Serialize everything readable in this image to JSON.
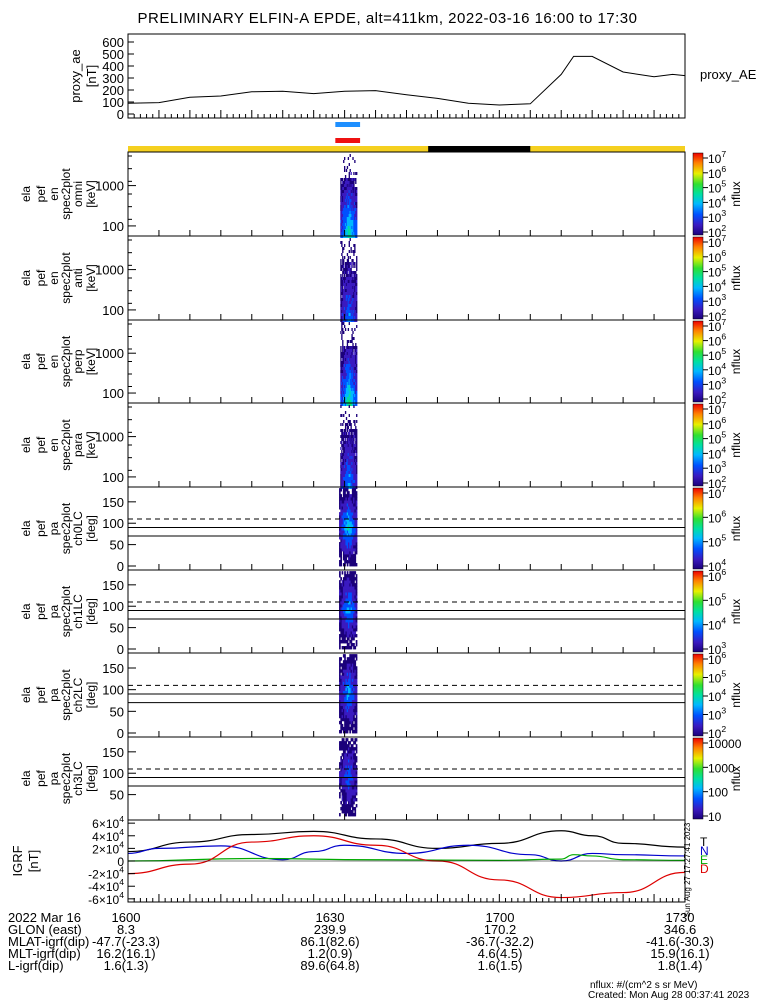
{
  "title": "PRELIMINARY ELFIN-A EPDE, alt=411km, 2022-03-16 16:00 to 17:30",
  "chart_data": [
    {
      "type": "line",
      "panel": "proxy_ae",
      "ylabel": [
        "proxy_ae",
        "[nT]"
      ],
      "legend": "proxy_AE",
      "ylim": [
        0,
        650
      ],
      "yticks": [
        "0",
        "100",
        "200",
        "300",
        "400",
        "500",
        "600"
      ],
      "x_minutes": [
        0,
        5,
        10,
        15,
        20,
        25,
        30,
        35,
        40,
        45,
        50,
        55,
        60,
        65,
        70,
        72,
        75,
        80,
        85,
        88,
        90
      ],
      "values": [
        90,
        95,
        140,
        150,
        185,
        190,
        170,
        190,
        195,
        160,
        130,
        90,
        75,
        85,
        330,
        480,
        480,
        350,
        310,
        330,
        320
      ]
    },
    {
      "type": "heatmap",
      "panel": "ela pef en spec2plot omni",
      "ylabel": [
        "ela",
        "pef",
        "en",
        "spec2plot",
        "omni",
        "[keV]"
      ],
      "yticks": [
        "100",
        "1000"
      ],
      "colorbar_ticks": [
        "10^2",
        "10^3",
        "10^4",
        "10^5",
        "10^6",
        "10^7"
      ],
      "colorbar_label": "nflux",
      "active_minutes": [
        34.5,
        36.5
      ]
    },
    {
      "type": "heatmap",
      "panel": "ela pef en spec2plot anti",
      "ylabel": [
        "ela",
        "pef",
        "en",
        "spec2plot",
        "anti",
        "[keV]"
      ],
      "yticks": [
        "100",
        "1000"
      ],
      "colorbar_ticks": [
        "10^2",
        "10^3",
        "10^4",
        "10^5",
        "10^6",
        "10^7"
      ],
      "colorbar_label": "nflux"
    },
    {
      "type": "heatmap",
      "panel": "ela pef en spec2plot perp",
      "ylabel": [
        "ela",
        "pef",
        "en",
        "spec2plot",
        "perp",
        "[keV]"
      ],
      "yticks": [
        "100",
        "1000"
      ],
      "colorbar_ticks": [
        "10^2",
        "10^3",
        "10^4",
        "10^5",
        "10^6",
        "10^7"
      ],
      "colorbar_label": "nflux"
    },
    {
      "type": "heatmap",
      "panel": "ela pef en spec2plot para",
      "ylabel": [
        "ela",
        "pef",
        "en",
        "spec2plot",
        "para",
        "[keV]"
      ],
      "yticks": [
        "100",
        "1000"
      ],
      "colorbar_ticks": [
        "10^2",
        "10^3",
        "10^4",
        "10^5",
        "10^6",
        "10^7"
      ],
      "colorbar_label": "nflux"
    },
    {
      "type": "heatmap",
      "panel": "ela pef pa spec2plot ch0LC",
      "ylabel": [
        "ela",
        "pef",
        "pa",
        "spec2plot",
        "ch0LC",
        "[deg]"
      ],
      "yticks": [
        "0",
        "50",
        "100",
        "150"
      ],
      "colorbar_ticks": [
        "10^4",
        "10^5",
        "10^6",
        "10^7"
      ],
      "colorbar_label": "nflux"
    },
    {
      "type": "heatmap",
      "panel": "ela pef pa spec2plot ch1LC",
      "ylabel": [
        "ela",
        "pef",
        "pa",
        "spec2plot",
        "ch1LC",
        "[deg]"
      ],
      "yticks": [
        "0",
        "50",
        "100",
        "150"
      ],
      "colorbar_ticks": [
        "10^3",
        "10^4",
        "10^5",
        "10^6"
      ],
      "colorbar_label": "nflux"
    },
    {
      "type": "heatmap",
      "panel": "ela pef pa spec2plot ch2LC",
      "ylabel": [
        "ela",
        "pef",
        "pa",
        "spec2plot",
        "ch2LC",
        "[deg]"
      ],
      "yticks": [
        "0",
        "50",
        "100",
        "150"
      ],
      "colorbar_ticks": [
        "10^2",
        "10^3",
        "10^4",
        "10^5",
        "10^6"
      ],
      "colorbar_label": "nflux"
    },
    {
      "type": "heatmap",
      "panel": "ela pef pa spec2plot ch3LC",
      "ylabel": [
        "ela",
        "pef",
        "pa",
        "spec2plot",
        "ch3LC",
        "[deg]"
      ],
      "yticks": [
        "50",
        "100",
        "150"
      ],
      "colorbar_ticks": [
        "10",
        "100",
        "1000",
        "10000"
      ],
      "colorbar_label": "nflux"
    },
    {
      "type": "line",
      "panel": "IGRF",
      "ylabel": [
        "IGRF",
        "[nT]"
      ],
      "ylim": [
        -65000,
        65000
      ],
      "yticks": [
        "-6×10^4",
        "-4×10^4",
        "-2×10^4",
        "0",
        "2×10^4",
        "4×10^4",
        "6×10^4"
      ],
      "legend": [
        "T",
        "N",
        "E",
        "D"
      ],
      "series": [
        {
          "name": "T",
          "color": "#000000",
          "x_minutes": [
            0,
            10,
            20,
            30,
            40,
            50,
            60,
            70,
            75,
            80,
            90
          ],
          "values": [
            15000,
            30000,
            42000,
            47000,
            35000,
            20000,
            28000,
            48000,
            40000,
            28000,
            22000
          ]
        },
        {
          "name": "N",
          "color": "#0000cc",
          "x_minutes": [
            0,
            5,
            15,
            25,
            30,
            35,
            45,
            55,
            65,
            70,
            75,
            80,
            90
          ],
          "values": [
            12000,
            20000,
            24000,
            2000,
            15000,
            25000,
            12000,
            25000,
            10000,
            0,
            12000,
            10000,
            8000
          ]
        },
        {
          "name": "E",
          "color": "#00aa00",
          "x_minutes": [
            0,
            20,
            40,
            60,
            70,
            72,
            75,
            80,
            90
          ],
          "values": [
            0,
            4000,
            2000,
            1000,
            3000,
            10000,
            8000,
            2000,
            1000
          ]
        },
        {
          "name": "D",
          "color": "#dd0000",
          "x_minutes": [
            0,
            10,
            20,
            30,
            40,
            50,
            60,
            70,
            80,
            90
          ],
          "values": [
            -20000,
            -5000,
            30000,
            40000,
            25000,
            0,
            -30000,
            -58000,
            -50000,
            -18000
          ]
        }
      ],
      "sidebar_text": "Sun Aug 27 17:27:41 2023"
    }
  ],
  "xaxis": {
    "labels": [
      "1600",
      "1630",
      "1700",
      "1730"
    ],
    "range_minutes": [
      0,
      90
    ]
  },
  "status_bars": {
    "blue_segment_minutes": [
      33.5,
      37.5
    ],
    "red_segment_minutes": [
      33.5,
      37.5
    ],
    "yellow_black_bar": {
      "black_segment_minutes": [
        48.5,
        65.0
      ]
    }
  },
  "footer": {
    "rows": [
      [
        "2022 Mar 16",
        "1600",
        "1630",
        "1700",
        "1730"
      ],
      [
        "GLON (east)",
        "8.3",
        "239.9",
        "170.2",
        "346.6"
      ],
      [
        "MLAT-igrf(dip)",
        "-47.7(-23.3)",
        "86.1(82.6)",
        "-36.7(-32.2)",
        "-41.6(-30.3)"
      ],
      [
        "MLT-igrf(dip)",
        "16.2(16.1)",
        "1.2(0.9)",
        "4.6(4.5)",
        "15.9(16.1)"
      ],
      [
        "L-igrf(dip)",
        "1.6(1.3)",
        "89.6(64.8)",
        "1.6(1.5)",
        "1.8(1.4)"
      ]
    ],
    "unit_note": "nflux: #/(cm^2 s sr MeV)",
    "created": "Created: Mon Aug 28 00:37:41 2023"
  }
}
